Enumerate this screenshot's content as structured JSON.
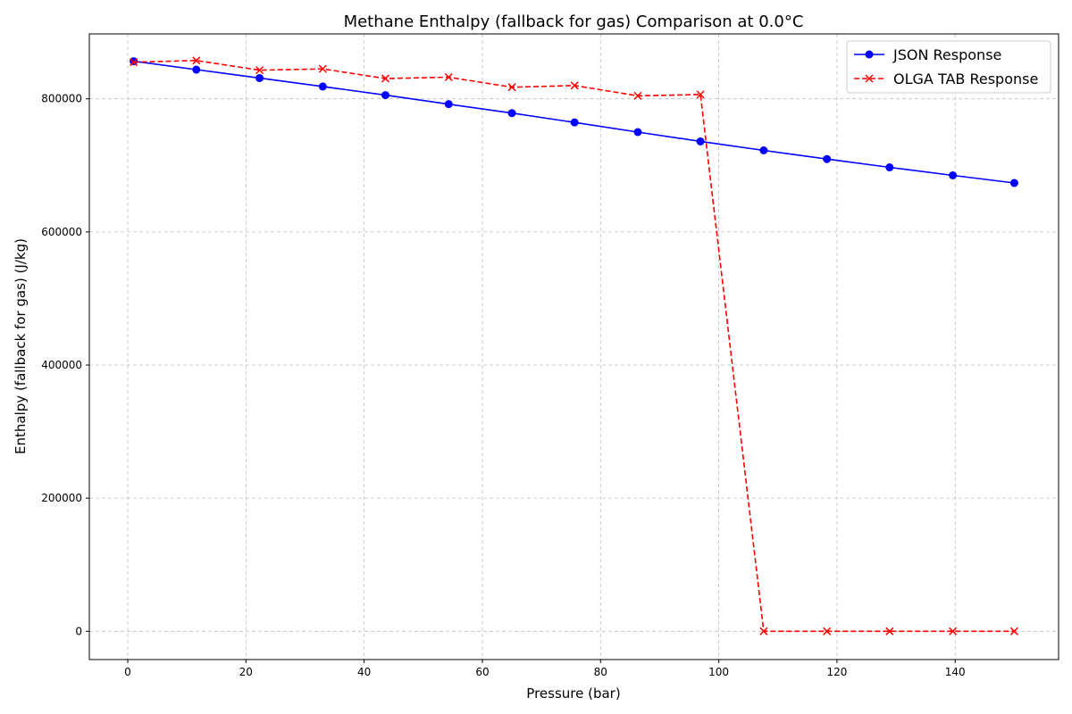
{
  "chart_data": {
    "type": "line",
    "title": "Methane Enthalpy (fallback for gas) Comparison at 0.0°C",
    "xlabel": "Pressure (bar)",
    "ylabel": "Enthalpy (fallback for gas) (J/kg)",
    "xlim": [
      -6.5,
      157.5
    ],
    "ylim": [
      -42500,
      897500
    ],
    "xticks": [
      0,
      20,
      40,
      60,
      80,
      100,
      120,
      140
    ],
    "yticks": [
      0,
      200000,
      400000,
      600000,
      800000
    ],
    "grid": true,
    "legend_position": "top-right",
    "series": [
      {
        "name": "JSON Response",
        "color": "#0000ff",
        "marker": "circle",
        "line_style": "solid",
        "x": [
          1.0,
          11.6,
          22.3,
          33.0,
          43.6,
          54.3,
          65.0,
          75.6,
          86.3,
          96.9,
          107.6,
          118.3,
          128.9,
          139.6,
          150.0
        ],
        "y": [
          856500,
          843800,
          831200,
          818500,
          805500,
          792000,
          778500,
          764500,
          750000,
          736000,
          722500,
          709500,
          697000,
          685000,
          673500
        ]
      },
      {
        "name": "OLGA TAB Response",
        "color": "#ff0000",
        "marker": "x",
        "line_style": "dashed",
        "x": [
          1.0,
          11.6,
          22.3,
          33.0,
          43.6,
          54.3,
          65.0,
          75.6,
          86.3,
          96.9,
          107.6,
          118.3,
          128.9,
          139.6,
          150.0
        ],
        "y": [
          855000,
          857500,
          843000,
          845000,
          830500,
          832500,
          817500,
          820000,
          804500,
          806500,
          0,
          0,
          0,
          0,
          0
        ]
      }
    ]
  }
}
